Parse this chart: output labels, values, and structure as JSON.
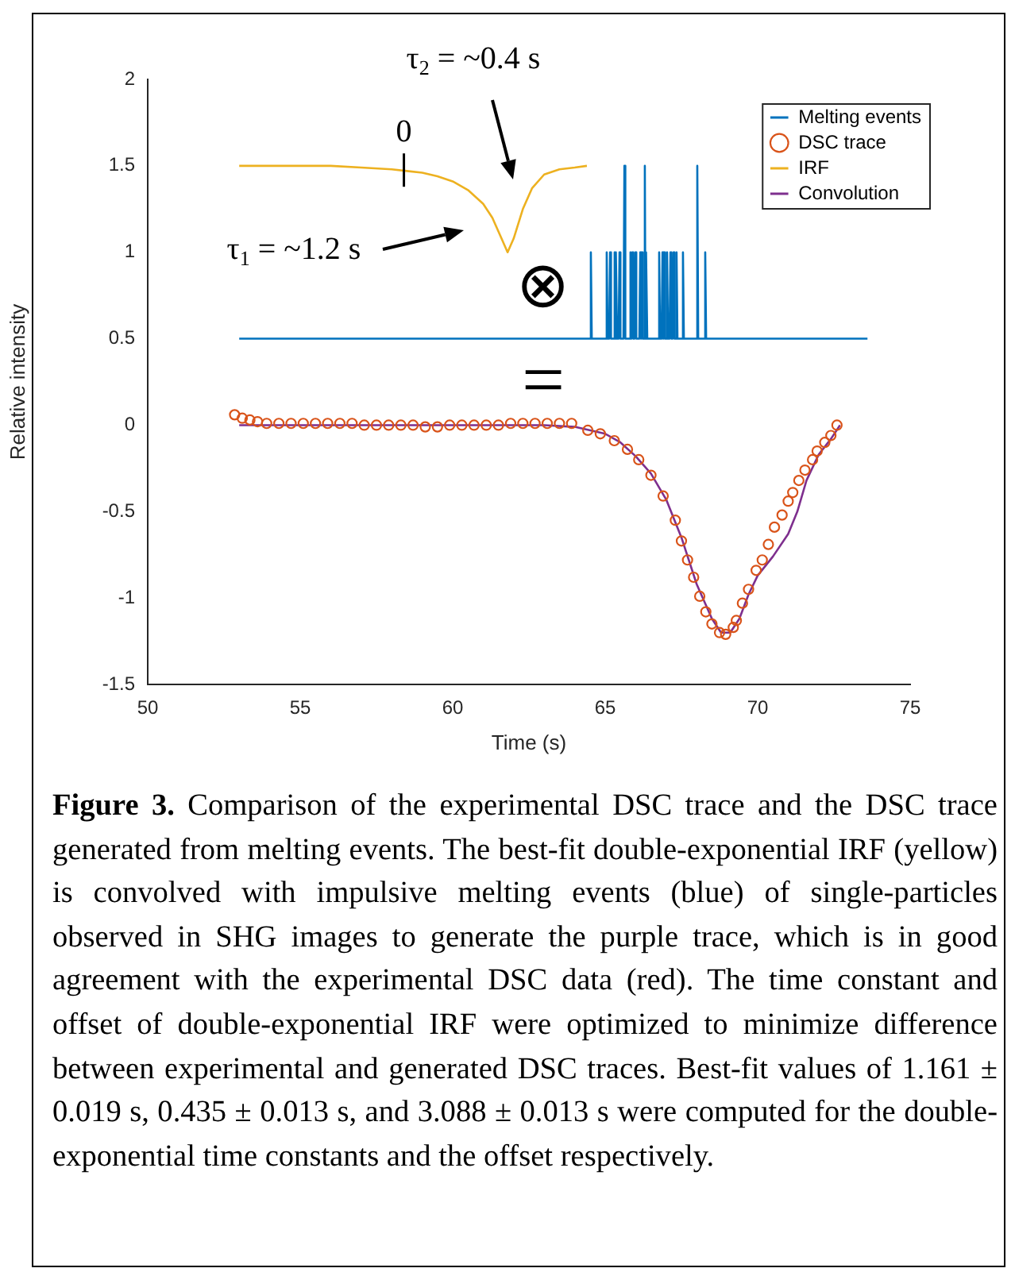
{
  "chart_data": {
    "type": "line",
    "xlabel": "Time (s)",
    "ylabel": "Relative intensity",
    "xlim": [
      50,
      75
    ],
    "xticks": [
      50,
      55,
      60,
      65,
      70,
      75
    ],
    "ylim": [
      -1.5,
      2
    ],
    "yticks": [
      -1.5,
      -1,
      -0.5,
      0,
      0.5,
      1,
      1.5,
      2
    ],
    "grid": false,
    "legend": "top right",
    "series": [
      {
        "name": "Melting events",
        "type": "line",
        "color": "#0072bd",
        "marker": "none",
        "x": [
          53,
          64.5,
          64.53,
          64.56,
          65.02,
          65.05,
          65.08,
          65.13,
          65.16,
          65.19,
          65.28,
          65.31,
          65.33,
          65.34,
          65.36,
          65.39,
          65.44,
          65.47,
          65.5,
          65.6,
          65.63,
          65.66,
          65.8,
          65.83,
          65.86,
          65.87,
          65.89,
          65.92,
          65.96,
          65.99,
          66.02,
          66.12,
          66.15,
          66.17,
          66.18,
          66.2,
          66.23,
          66.27,
          66.3,
          66.32,
          66.33,
          66.35,
          66.38,
          66.74,
          66.77,
          66.8,
          66.85,
          66.88,
          66.9,
          66.91,
          66.93,
          66.96,
          67.0,
          67.03,
          67.06,
          67.11,
          67.14,
          67.17,
          67.21,
          67.24,
          67.27,
          67.31,
          67.34,
          67.37,
          67.52,
          67.55,
          67.58,
          67.99,
          68.02,
          68.05,
          68.25,
          68.28,
          68.31,
          73.6
        ],
        "values": [
          0.5,
          0.5,
          1,
          0.5,
          0.5,
          1,
          0.5,
          0.5,
          1,
          0.5,
          0.5,
          1,
          0.5,
          0.5,
          1,
          0.5,
          0.5,
          1,
          0.5,
          0.5,
          1.5,
          0.5,
          0.5,
          1,
          0.5,
          0.5,
          1,
          0.5,
          0.5,
          1,
          0.5,
          0.5,
          1,
          0.5,
          0.5,
          1,
          0.5,
          0.5,
          1.5,
          0.5,
          0.5,
          1,
          0.5,
          0.5,
          1,
          0.5,
          0.5,
          1,
          0.5,
          0.5,
          1,
          0.5,
          0.5,
          1,
          0.5,
          0.5,
          1,
          0.5,
          0.5,
          1,
          0.5,
          0.5,
          1,
          0.5,
          0.5,
          1,
          0.5,
          0.5,
          1.5,
          0.5,
          0.5,
          1,
          0.5,
          0.5
        ]
      },
      {
        "name": "DSC trace",
        "type": "scatter",
        "color": "#d95319",
        "marker": "circle",
        "x": [
          52.85,
          53.1,
          53.35,
          53.6,
          53.9,
          54.3,
          54.7,
          55.1,
          55.5,
          55.9,
          56.3,
          56.7,
          57.1,
          57.5,
          57.9,
          58.3,
          58.7,
          59.1,
          59.5,
          59.9,
          60.3,
          60.7,
          61.1,
          61.5,
          61.9,
          62.3,
          62.7,
          63.1,
          63.5,
          63.9,
          64.43,
          64.84,
          65.3,
          65.73,
          66.1,
          66.5,
          66.9,
          67.3,
          67.5,
          67.7,
          67.9,
          68.1,
          68.3,
          68.5,
          68.75,
          68.95,
          69.2,
          69.3,
          69.5,
          69.7,
          69.95,
          70.15,
          70.35,
          70.55,
          70.8,
          71.0,
          71.15,
          71.35,
          71.55,
          71.8,
          71.95,
          72.2,
          72.4,
          72.6
        ],
        "values": [
          0.06,
          0.04,
          0.03,
          0.02,
          0.01,
          0.01,
          0.01,
          0.01,
          0.01,
          0.01,
          0.01,
          0.01,
          0.0,
          0.0,
          0.0,
          0.0,
          0.0,
          -0.01,
          -0.01,
          0.0,
          0.0,
          0.0,
          0.0,
          0.0,
          0.01,
          0.01,
          0.01,
          0.01,
          0.01,
          0.01,
          -0.03,
          -0.05,
          -0.09,
          -0.14,
          -0.2,
          -0.29,
          -0.41,
          -0.55,
          -0.67,
          -0.78,
          -0.88,
          -0.99,
          -1.08,
          -1.15,
          -1.2,
          -1.21,
          -1.17,
          -1.13,
          -1.03,
          -0.95,
          -0.84,
          -0.78,
          -0.69,
          -0.59,
          -0.52,
          -0.44,
          -0.39,
          -0.32,
          -0.26,
          -0.2,
          -0.15,
          -0.1,
          -0.06,
          0.0
        ]
      },
      {
        "name": "IRF",
        "type": "line",
        "color": "#edb120",
        "marker": "none",
        "x": [
          53,
          55,
          56,
          57,
          58,
          58.5,
          59,
          59.5,
          60,
          60.5,
          61,
          61.3,
          61.6,
          61.8,
          62.0,
          62.3,
          62.6,
          63,
          63.5,
          64,
          64.4
        ],
        "values": [
          1.5,
          1.5,
          1.5,
          1.49,
          1.48,
          1.47,
          1.46,
          1.44,
          1.41,
          1.36,
          1.28,
          1.2,
          1.08,
          1.0,
          1.08,
          1.25,
          1.37,
          1.45,
          1.48,
          1.49,
          1.5
        ]
      },
      {
        "name": "Convolution",
        "type": "line",
        "color": "#7e2f8e",
        "marker": "none",
        "x": [
          53,
          56,
          60,
          63,
          64,
          65,
          65.5,
          66,
          66.5,
          67,
          67.5,
          68,
          68.5,
          68.8,
          69.1,
          69.4,
          69.7,
          70,
          70.5,
          71,
          71.3,
          71.6,
          72,
          72.4,
          72.7
        ],
        "values": [
          0,
          0,
          0,
          0,
          -0.01,
          -0.05,
          -0.1,
          -0.18,
          -0.28,
          -0.43,
          -0.65,
          -0.92,
          -1.12,
          -1.2,
          -1.2,
          -1.12,
          -0.98,
          -0.87,
          -0.76,
          -0.63,
          -0.5,
          -0.32,
          -0.17,
          -0.08,
          0
        ]
      }
    ],
    "annotations": [
      "τ$_{2}$ = ~0.4 s",
      "τ$_{1}$ = ~1.2 s",
      {
        "text": "0",
        "x": 58.4,
        "y": 1.48
      },
      "⊗",
      "=",
      "Figure 3. Comparison of the experimental DSC trace and the DSC trace generated from melting events. The best-fit double-exponential IRF (yellow) is convolved with impulsive melting events (blue) of single-particles observed in SHG images to generate the purple trace, which is in good agreement with the experimental DSC data (red). The time constant and offset of double-exponential IRF were optimized to minimize difference between experimental and generated DSC traces. Best-fit values of 1.161 ± 0.019 s, 0.435 ± 0.013 s, and 3.088 ± 0.013 s were computed for the double-exponential time constants and the offset respectively."
    ]
  }
}
